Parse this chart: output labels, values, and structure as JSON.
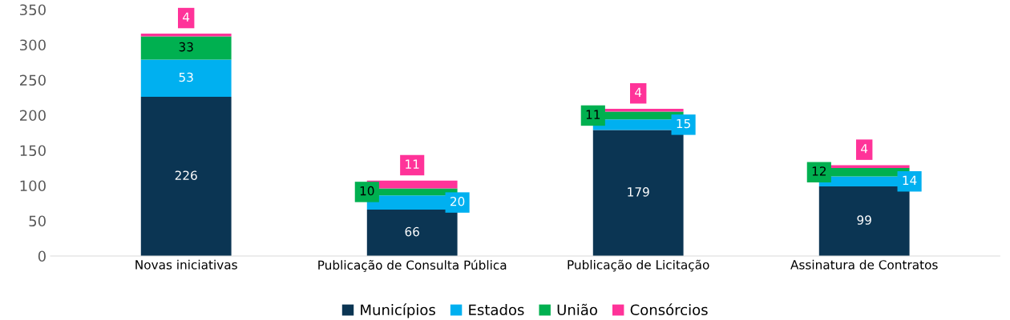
{
  "chart_data": {
    "type": "bar",
    "stacked": true,
    "categories": [
      "Novas iniciativas",
      "Publicação de Consulta Pública",
      "Publicação de Licitação",
      "Assinatura de Contratos"
    ],
    "series": [
      {
        "name": "Municípios",
        "color": "#0b3553",
        "values": [
          226,
          66,
          179,
          99
        ]
      },
      {
        "name": "Estados",
        "color": "#00b0f0",
        "values": [
          53,
          20,
          15,
          14
        ]
      },
      {
        "name": "União",
        "color": "#00b050",
        "values": [
          33,
          10,
          11,
          12
        ]
      },
      {
        "name": "Consórcios",
        "color": "#ff3399",
        "values": [
          4,
          11,
          4,
          4
        ]
      }
    ],
    "ylim": [
      0,
      350
    ],
    "yticks": [
      0,
      50,
      100,
      150,
      200,
      250,
      300,
      350
    ],
    "grid": false,
    "legend": "bottom",
    "data_labels": true
  }
}
